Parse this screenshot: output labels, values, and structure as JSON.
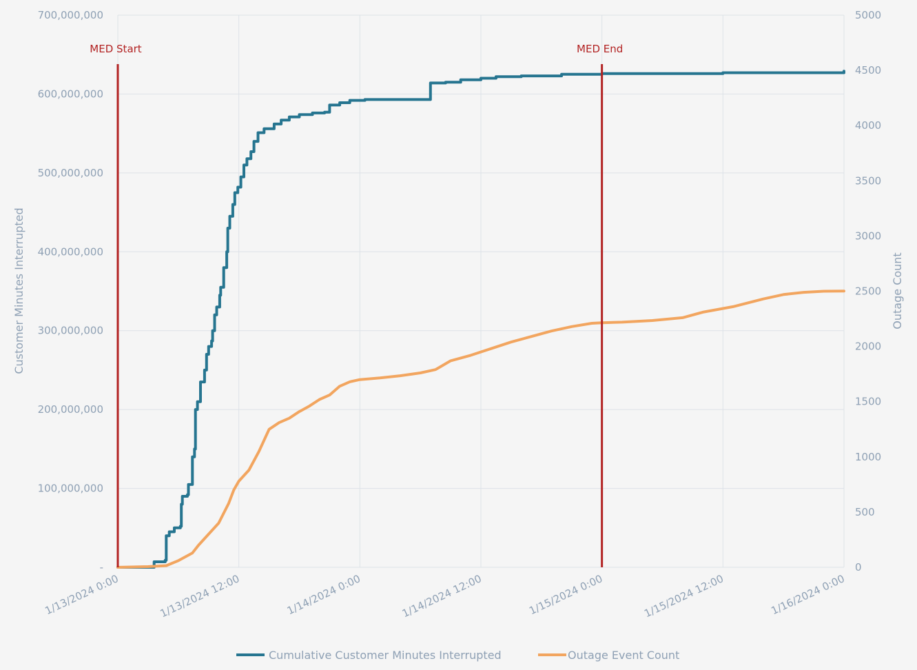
{
  "colors": {
    "series_minutes": "#267590",
    "series_count": "#f2a55f",
    "marker": "#b22222",
    "grid": "#dde2e8",
    "axis_text": "#8ea0b4",
    "background": "#f5f5f5"
  },
  "chart_data": {
    "type": "line",
    "x_tick_labels": [
      "1/13/2024 0:00",
      "1/13/2024 12:00",
      "1/14/2024 0:00",
      "1/14/2024 12:00",
      "1/15/2024 0:00",
      "1/15/2024 12:00",
      "1/16/2024 0:00"
    ],
    "x_unit": "hours since 1/13/2024 0:00",
    "xlim": [
      0,
      72
    ],
    "y_left": {
      "label": "Customer Minutes Interrupted",
      "lim": [
        0,
        700000000
      ],
      "tick_labels": [
        "-",
        "100,000,000",
        "200,000,000",
        "300,000,000",
        "400,000,000",
        "500,000,000",
        "600,000,000",
        "700,000,000"
      ]
    },
    "y_right": {
      "label": "Outage Count",
      "lim": [
        0,
        5000
      ],
      "tick_labels": [
        "0",
        "500",
        "1000",
        "1500",
        "2000",
        "2500",
        "3000",
        "3500",
        "4000",
        "4500",
        "5000"
      ]
    },
    "grid": true,
    "legend_position": "bottom",
    "markers": [
      {
        "label": "MED Start",
        "x": 0
      },
      {
        "label": "MED End",
        "x": 48
      }
    ],
    "series": [
      {
        "name": "Cumulative Customer Minutes Interrupted",
        "axis": "left",
        "step": true,
        "points": [
          [
            0,
            0
          ],
          [
            3.6,
            0
          ],
          [
            3.6,
            7000000
          ],
          [
            4.6,
            7000000
          ],
          [
            4.7,
            9000000
          ],
          [
            4.8,
            40000000
          ],
          [
            5.1,
            45000000
          ],
          [
            5.6,
            50000000
          ],
          [
            6.2,
            52000000
          ],
          [
            6.3,
            80000000
          ],
          [
            6.4,
            90000000
          ],
          [
            6.9,
            92000000
          ],
          [
            7.0,
            105000000
          ],
          [
            7.4,
            108000000
          ],
          [
            7.4,
            140000000
          ],
          [
            7.6,
            150000000
          ],
          [
            7.7,
            200000000
          ],
          [
            7.9,
            210000000
          ],
          [
            8.2,
            235000000
          ],
          [
            8.6,
            250000000
          ],
          [
            8.8,
            270000000
          ],
          [
            9.0,
            280000000
          ],
          [
            9.3,
            287000000
          ],
          [
            9.4,
            300000000
          ],
          [
            9.6,
            320000000
          ],
          [
            9.8,
            330000000
          ],
          [
            10.1,
            345000000
          ],
          [
            10.2,
            355000000
          ],
          [
            10.5,
            380000000
          ],
          [
            10.8,
            400000000
          ],
          [
            10.9,
            430000000
          ],
          [
            11.1,
            445000000
          ],
          [
            11.4,
            460000000
          ],
          [
            11.6,
            475000000
          ],
          [
            11.9,
            482000000
          ],
          [
            12.2,
            495000000
          ],
          [
            12.5,
            510000000
          ],
          [
            12.8,
            518000000
          ],
          [
            13.2,
            527000000
          ],
          [
            13.5,
            540000000
          ],
          [
            13.9,
            551000000
          ],
          [
            14.5,
            556000000
          ],
          [
            15.5,
            562000000
          ],
          [
            16.2,
            567000000
          ],
          [
            17.0,
            571000000
          ],
          [
            18.0,
            574000000
          ],
          [
            19.3,
            576000000
          ],
          [
            20.5,
            577000000
          ],
          [
            21.0,
            578000000
          ],
          [
            21.0,
            586000000
          ],
          [
            22.0,
            589000000
          ],
          [
            23.0,
            592000000
          ],
          [
            24.5,
            593000000
          ],
          [
            31.0,
            594000000
          ],
          [
            31.0,
            614000000
          ],
          [
            32.5,
            615000000
          ],
          [
            34.0,
            618000000
          ],
          [
            36.0,
            620000000
          ],
          [
            37.5,
            622000000
          ],
          [
            40.0,
            623000000
          ],
          [
            44.0,
            625000000
          ],
          [
            48.0,
            626000000
          ],
          [
            52.0,
            626000000
          ],
          [
            60.0,
            627000000
          ],
          [
            72.0,
            629000000
          ]
        ]
      },
      {
        "name": "Outage Event Count",
        "axis": "right",
        "step": false,
        "points": [
          [
            0,
            0
          ],
          [
            3.0,
            6
          ],
          [
            4.8,
            15
          ],
          [
            6.0,
            60
          ],
          [
            7.4,
            130
          ],
          [
            8.0,
            200
          ],
          [
            9.0,
            300
          ],
          [
            10.0,
            400
          ],
          [
            11.0,
            580
          ],
          [
            11.5,
            700
          ],
          [
            12.0,
            780
          ],
          [
            13.0,
            880
          ],
          [
            14.0,
            1050
          ],
          [
            15.0,
            1250
          ],
          [
            16.0,
            1310
          ],
          [
            17.0,
            1350
          ],
          [
            18.0,
            1410
          ],
          [
            19.0,
            1460
          ],
          [
            20.0,
            1520
          ],
          [
            21.0,
            1560
          ],
          [
            22.0,
            1640
          ],
          [
            23.0,
            1680
          ],
          [
            24.0,
            1700
          ],
          [
            26.0,
            1715
          ],
          [
            28.0,
            1735
          ],
          [
            30.0,
            1760
          ],
          [
            31.5,
            1790
          ],
          [
            33.0,
            1870
          ],
          [
            35.0,
            1920
          ],
          [
            37.0,
            1980
          ],
          [
            39.0,
            2040
          ],
          [
            41.0,
            2090
          ],
          [
            43.0,
            2140
          ],
          [
            45.0,
            2180
          ],
          [
            47.0,
            2210
          ],
          [
            48.0,
            2215
          ],
          [
            50.0,
            2220
          ],
          [
            53.0,
            2235
          ],
          [
            56.0,
            2260
          ],
          [
            58.0,
            2310
          ],
          [
            61.0,
            2360
          ],
          [
            64.0,
            2430
          ],
          [
            66.0,
            2470
          ],
          [
            68.0,
            2490
          ],
          [
            70.0,
            2500
          ],
          [
            72.0,
            2502
          ]
        ]
      }
    ]
  }
}
